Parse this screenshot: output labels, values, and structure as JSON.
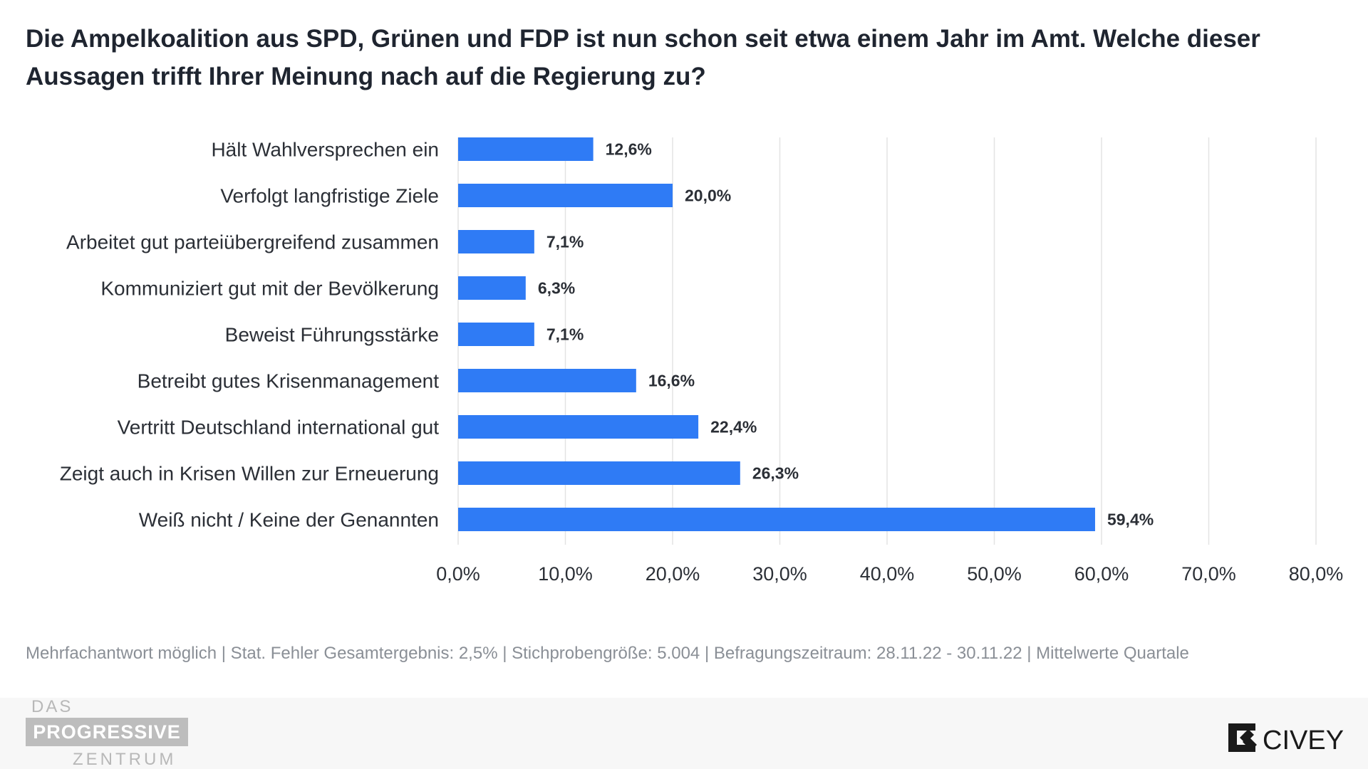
{
  "title": "Die Ampelkoalition aus SPD, Grünen und FDP ist nun schon seit etwa einem Jahr im Amt. Welche dieser Aussagen trifft Ihrer Meinung nach auf die Regierung zu?",
  "footnote": "Mehrfachantwort möglich | Stat. Fehler Gesamtergebnis: 2,5% | Stichprobengröße: 5.004 | Befragungszeitraum: 28.11.22 - 30.11.22 | Mittelwerte Quartale",
  "logos": {
    "left": {
      "line1": "DAS",
      "line2": "PROGRESSIVE",
      "line3": "ZENTRUM"
    },
    "right": {
      "text": "CIVEY"
    }
  },
  "colors": {
    "bar": "#2f7bf5",
    "grid": "#e3e3e3",
    "text": "#2b2f36",
    "muted": "#8a8f96"
  },
  "chart_data": {
    "type": "bar",
    "orientation": "horizontal",
    "categories": [
      "Hält Wahlversprechen ein",
      "Verfolgt langfristige Ziele",
      "Arbeitet gut parteiübergreifend zusammen",
      "Kommuniziert gut mit der Bevölkerung",
      "Beweist Führungsstärke",
      "Betreibt gutes Krisenmanagement",
      "Vertritt Deutschland international gut",
      "Zeigt auch in Krisen Willen zur Erneuerung",
      "Weiß nicht / Keine der Genannten"
    ],
    "values": [
      12.6,
      20.0,
      7.1,
      6.3,
      7.1,
      16.6,
      22.4,
      26.3,
      59.4
    ],
    "value_labels": [
      "12,6%",
      "20,0%",
      "7,1%",
      "6,3%",
      "7,1%",
      "16,6%",
      "22,4%",
      "26,3%",
      "59,4%"
    ],
    "xlim": [
      0,
      80
    ],
    "xticks": [
      0,
      10,
      20,
      30,
      40,
      50,
      60,
      70,
      80
    ],
    "xtick_labels": [
      "0,0%",
      "10,0%",
      "20,0%",
      "30,0%",
      "40,0%",
      "50,0%",
      "60,0%",
      "70,0%",
      "80,0%"
    ],
    "grid": true,
    "legend": "none"
  }
}
